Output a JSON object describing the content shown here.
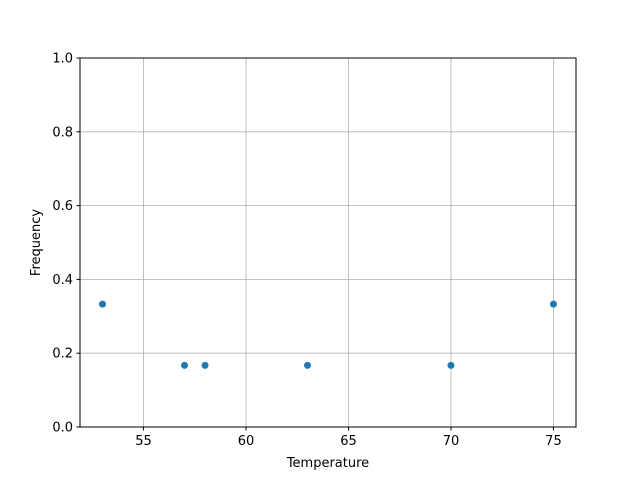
{
  "chart_data": {
    "type": "scatter",
    "title": "",
    "xlabel": "Temperature",
    "ylabel": "Frequency",
    "xlim": [
      51.9,
      76.1
    ],
    "ylim": [
      0,
      1.0
    ],
    "xticks": [
      55,
      60,
      65,
      70,
      75
    ],
    "xtick_labels": [
      "55",
      "60",
      "65",
      "70",
      "75"
    ],
    "yticks": [
      0,
      0.2,
      0.4,
      0.6,
      0.8,
      1.0
    ],
    "ytick_labels": [
      "0.0",
      "0.2",
      "0.4",
      "0.6",
      "0.8",
      "1.0"
    ],
    "grid": true,
    "color": "#1f77b4",
    "points": [
      {
        "x": 53,
        "y": 0.333
      },
      {
        "x": 57,
        "y": 0.167
      },
      {
        "x": 58,
        "y": 0.167
      },
      {
        "x": 63,
        "y": 0.167
      },
      {
        "x": 70,
        "y": 0.167
      },
      {
        "x": 75,
        "y": 0.333
      }
    ]
  }
}
